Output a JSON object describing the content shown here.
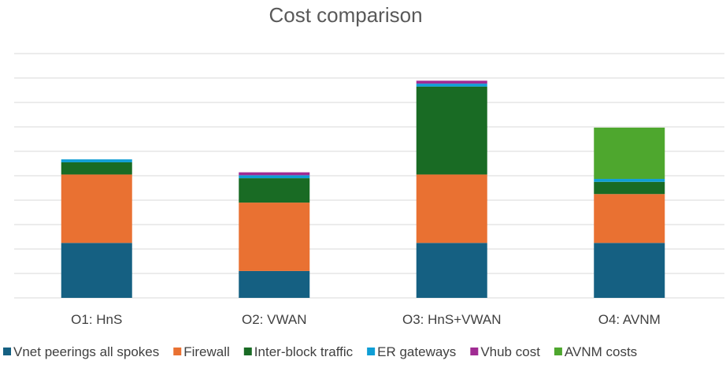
{
  "chart_data": {
    "type": "bar",
    "stacked": true,
    "title": "Cost comparison",
    "xlabel": "",
    "ylabel": "",
    "ylim": [
      0,
      10
    ],
    "gridlines": [
      1,
      2,
      3,
      4,
      5,
      6,
      7,
      8,
      9,
      10
    ],
    "grid": true,
    "y_tick_labels_shown": false,
    "legend_position": "bottom",
    "categories": [
      "O1: HnS",
      "O2: VWAN",
      "O3: HnS+VWAN",
      "O4: AVNM"
    ],
    "series": [
      {
        "name": "Vnet peerings all spokes",
        "color": "#156082",
        "values": [
          2.25,
          1.1,
          2.25,
          2.25
        ]
      },
      {
        "name": "Firewall",
        "color": "#e97132",
        "values": [
          2.8,
          2.8,
          2.8,
          2.0
        ]
      },
      {
        "name": "Inter-block traffic",
        "color": "#196b24",
        "values": [
          0.5,
          1.0,
          3.6,
          0.5
        ]
      },
      {
        "name": "ER gateways",
        "color": "#0f9ed5",
        "values": [
          0.12,
          0.12,
          0.12,
          0.12
        ]
      },
      {
        "name": "Vhub cost",
        "color": "#a02b93",
        "values": [
          0.0,
          0.12,
          0.12,
          0.0
        ]
      },
      {
        "name": "AVNM costs",
        "color": "#4ea72e",
        "values": [
          0.0,
          0.0,
          0.0,
          2.1
        ]
      }
    ]
  }
}
